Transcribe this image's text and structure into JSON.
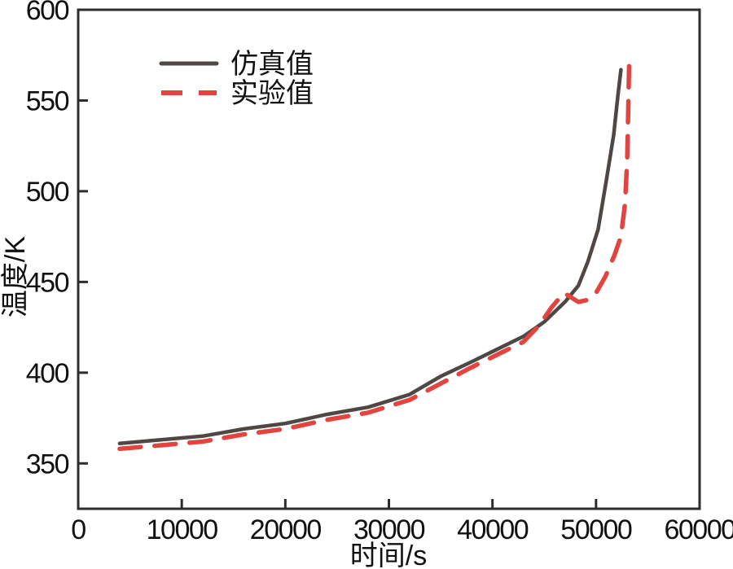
{
  "figure": {
    "background": "#ffffff",
    "axis_color": "#2f2d2b",
    "text_color": "#111111"
  },
  "chart_data": {
    "type": "line",
    "title": "",
    "xlabel": "时间/s",
    "ylabel": "温度/K",
    "xlim": [
      0,
      60000
    ],
    "ylim": [
      325,
      600
    ],
    "x_ticks": [
      0,
      10000,
      20000,
      30000,
      40000,
      50000,
      60000
    ],
    "y_ticks": [
      350,
      400,
      450,
      500,
      550,
      600
    ],
    "grid": false,
    "legend_position": "top-left-inside",
    "series": [
      {
        "name": "仿真值",
        "style": "solid",
        "color": "#4e4744",
        "points": [
          [
            4000,
            361
          ],
          [
            8000,
            363
          ],
          [
            12000,
            365
          ],
          [
            16000,
            369
          ],
          [
            20000,
            372
          ],
          [
            24000,
            377
          ],
          [
            28000,
            381
          ],
          [
            32000,
            388
          ],
          [
            35000,
            398
          ],
          [
            38000,
            406
          ],
          [
            40500,
            413
          ],
          [
            43000,
            420
          ],
          [
            45000,
            428
          ],
          [
            47000,
            439
          ],
          [
            48300,
            448
          ],
          [
            49200,
            461
          ],
          [
            50200,
            479
          ],
          [
            51000,
            506
          ],
          [
            51700,
            531
          ],
          [
            52100,
            552
          ],
          [
            52400,
            567
          ]
        ]
      },
      {
        "name": "实验值",
        "style": "dashed",
        "color": "#e2453f",
        "points": [
          [
            4000,
            358
          ],
          [
            8000,
            360
          ],
          [
            12000,
            362
          ],
          [
            16000,
            366
          ],
          [
            20000,
            369
          ],
          [
            24000,
            374
          ],
          [
            28000,
            378
          ],
          [
            32000,
            385
          ],
          [
            35000,
            394
          ],
          [
            38000,
            403
          ],
          [
            40500,
            410
          ],
          [
            43000,
            417
          ],
          [
            44500,
            426
          ],
          [
            45700,
            436
          ],
          [
            46900,
            444
          ],
          [
            48300,
            439
          ],
          [
            49100,
            440
          ],
          [
            49900,
            443
          ],
          [
            50900,
            453
          ],
          [
            51800,
            465
          ],
          [
            52400,
            475
          ],
          [
            52800,
            493
          ],
          [
            53000,
            516
          ],
          [
            53100,
            543
          ],
          [
            53200,
            571
          ]
        ]
      }
    ]
  }
}
